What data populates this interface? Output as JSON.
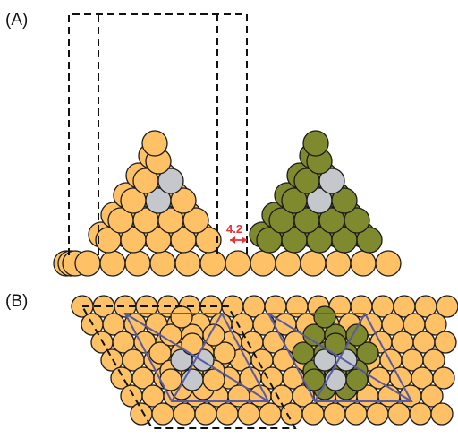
{
  "panels": {
    "a": {
      "label": "(A)"
    },
    "b": {
      "label": "(B)"
    }
  },
  "annotation": {
    "distance_label": "4.2",
    "color": "#e8323c"
  },
  "colors": {
    "gold_atom": "#ffc165",
    "olive_atom": "#7f8a2e",
    "core_atom": "#c4c8cc",
    "atom_stroke": "#1a1a1a",
    "unit_cell": "#5a5aa0",
    "dashed_box": "#111111"
  }
}
